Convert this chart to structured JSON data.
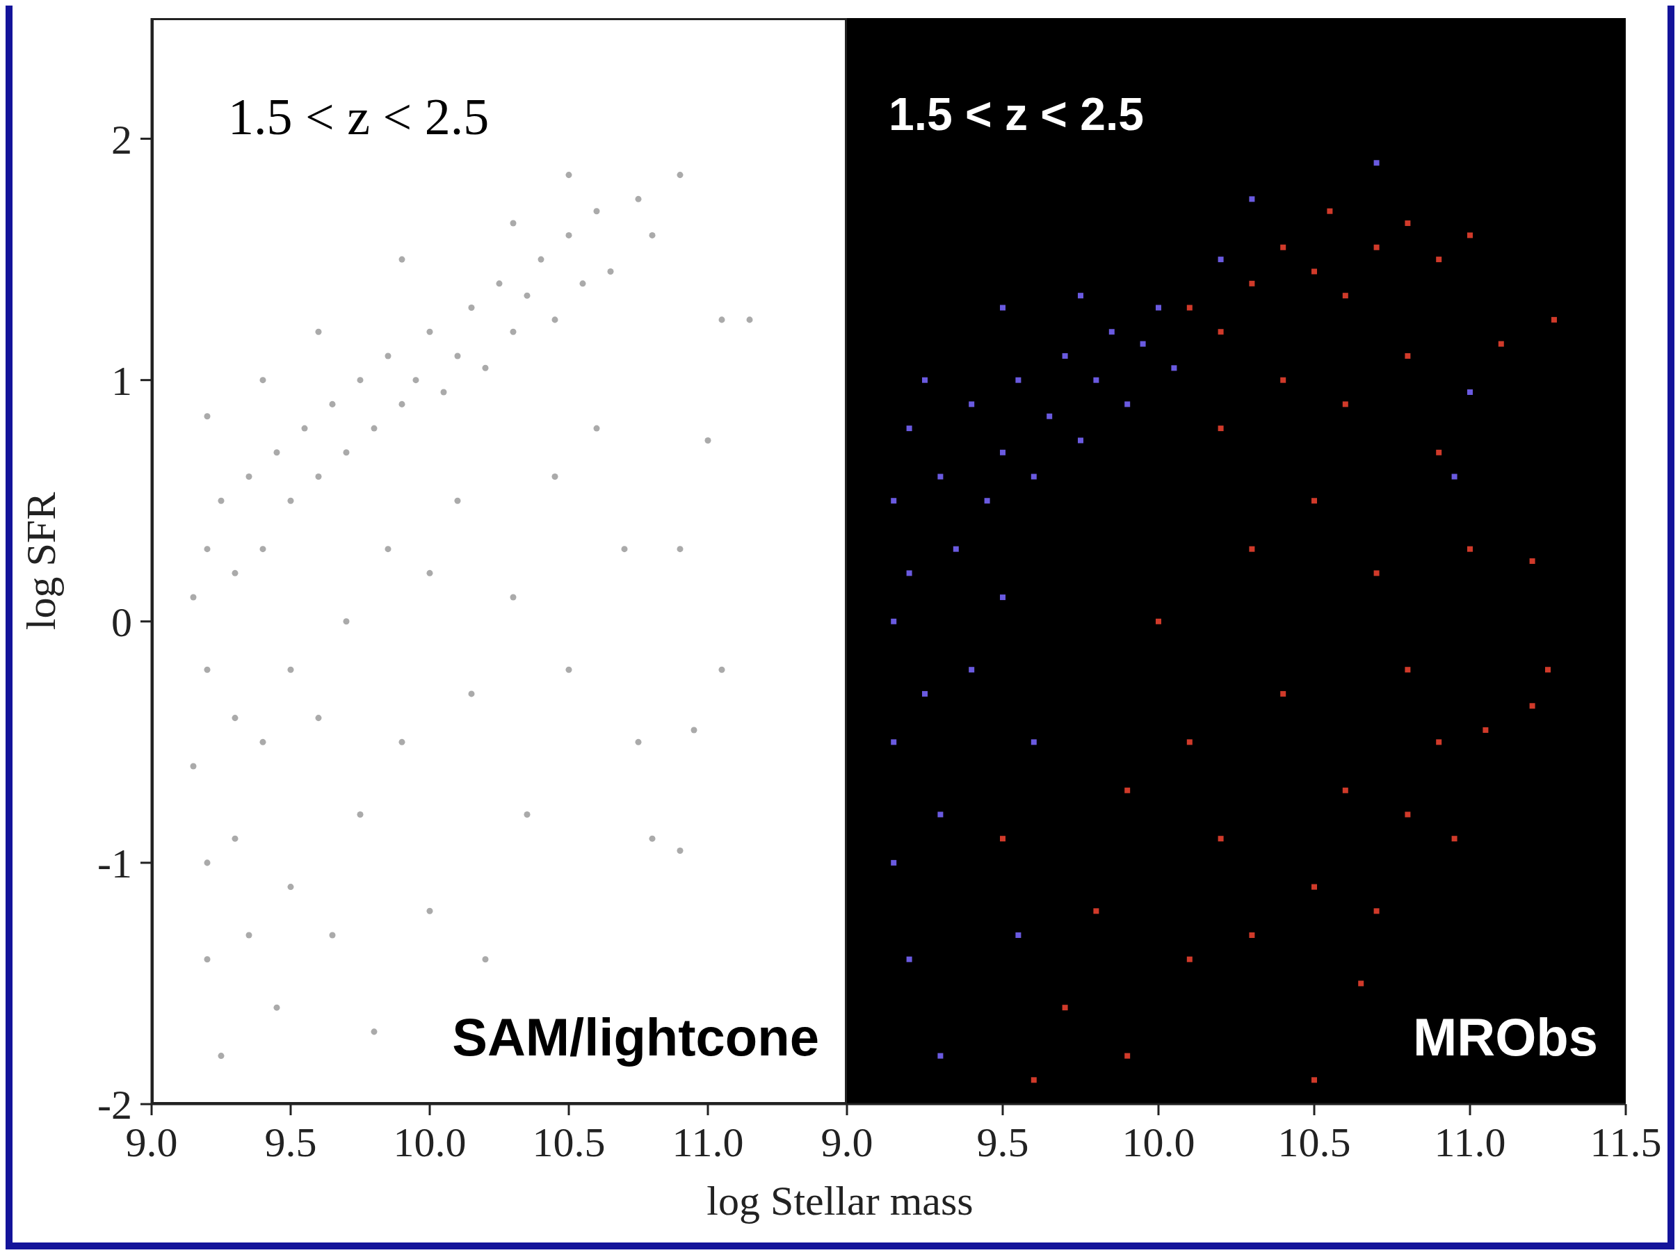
{
  "chart_data": [
    {
      "type": "scatter",
      "ylabel": "log SFR",
      "xlabel": "log Stellar mass",
      "xlim": [
        9,
        11.5
      ],
      "ylim": [
        -2,
        2.5
      ],
      "xticks": [
        {
          "value": 9,
          "label": "9.0"
        },
        {
          "value": 9.5,
          "label": "9.5"
        },
        {
          "value": 10,
          "label": "10.0"
        },
        {
          "value": 10.5,
          "label": "10.5"
        },
        {
          "value": 11,
          "label": "11.0"
        }
      ],
      "yticks": [
        -2,
        -1,
        0,
        1,
        2
      ],
      "grid": false,
      "legend": false,
      "marker": "circle",
      "annotations": [
        "1.5 < z < 2.5",
        "SAM/lightcone"
      ],
      "series": [
        {
          "color": "#aaaaaa",
          "x": [
            9.15,
            9.2,
            9.2,
            9.25,
            9.3,
            9.3,
            9.35,
            9.4,
            9.45,
            9.5,
            9.55,
            9.6,
            9.65,
            9.7,
            9.75,
            9.8,
            9.85,
            9.9,
            9.95,
            10.0,
            10.05,
            10.1,
            10.15,
            10.2,
            10.25,
            10.3,
            10.35,
            10.4,
            10.45,
            10.5,
            10.55,
            10.6,
            10.65,
            10.75,
            10.8,
            10.9,
            11.05,
            9.2,
            9.4,
            9.6,
            9.9,
            10.3,
            10.5,
            9.15,
            9.2,
            9.2,
            9.25,
            9.3,
            9.35,
            9.4,
            9.45,
            9.5,
            9.5,
            9.6,
            9.65,
            9.7,
            9.75,
            9.8,
            9.85,
            9.9,
            10.0,
            10.0,
            10.1,
            10.15,
            10.2,
            10.3,
            10.35,
            10.45,
            10.5,
            10.6,
            10.7,
            10.75,
            10.8,
            10.9,
            10.95,
            11.0,
            11.05,
            11.15,
            10.9
          ],
          "values": [
            0.1,
            0.3,
            -0.2,
            0.5,
            0.2,
            -0.4,
            0.6,
            0.3,
            0.7,
            0.5,
            0.8,
            0.6,
            0.9,
            0.7,
            1.0,
            0.8,
            1.1,
            0.9,
            1.0,
            1.2,
            0.95,
            1.1,
            1.3,
            1.05,
            1.4,
            1.2,
            1.35,
            1.5,
            1.25,
            1.6,
            1.4,
            1.7,
            1.45,
            1.75,
            1.6,
            1.85,
            1.25,
            0.85,
            1.0,
            1.2,
            1.5,
            1.65,
            1.85,
            -0.6,
            -1.0,
            -1.4,
            -1.8,
            -0.9,
            -1.3,
            -0.5,
            -1.6,
            -0.2,
            -1.1,
            -0.4,
            -1.3,
            0.0,
            -0.8,
            -1.7,
            0.3,
            -0.5,
            0.2,
            -1.2,
            0.5,
            -0.3,
            -1.4,
            0.1,
            -0.8,
            0.6,
            -0.2,
            0.8,
            0.3,
            -0.5,
            -0.9,
            0.3,
            -0.45,
            0.75,
            -0.2,
            1.25,
            -0.95
          ]
        }
      ]
    },
    {
      "type": "scatter",
      "xlim": [
        9,
        11.5
      ],
      "ylim": [
        -2,
        2.5
      ],
      "tick_labels": "x",
      "xticks": [
        {
          "value": 9,
          "label": "9.0"
        },
        {
          "value": 9.5,
          "label": "9.5"
        },
        {
          "value": 10,
          "label": "10.0"
        },
        {
          "value": 10.5,
          "label": "10.5"
        },
        {
          "value": 11,
          "label": "11.0"
        },
        {
          "value": 11.5,
          "label": "11.5"
        }
      ],
      "grid": false,
      "legend": false,
      "marker": "square",
      "annotations": [
        "1.5 < z < 2.5",
        "MRObs"
      ],
      "series": [
        {
          "color": "#6a5ae0",
          "x": [
            9.15,
            9.15,
            9.15,
            9.2,
            9.2,
            9.25,
            9.3,
            9.35,
            9.4,
            9.45,
            9.5,
            9.55,
            9.6,
            9.65,
            9.7,
            9.75,
            9.8,
            9.85,
            9.9,
            9.95,
            10.0,
            10.05,
            9.25,
            9.5,
            9.75,
            10.2,
            10.3,
            9.15,
            9.2,
            9.3,
            9.4,
            9.5,
            9.3,
            9.6,
            9.55,
            10.7,
            11.0,
            10.95
          ],
          "values": [
            0.0,
            0.5,
            -0.5,
            0.8,
            0.2,
            -0.3,
            0.6,
            0.3,
            0.9,
            0.5,
            0.7,
            1.0,
            0.6,
            0.85,
            1.1,
            0.75,
            1.0,
            1.2,
            0.9,
            1.15,
            1.3,
            1.05,
            1.0,
            1.3,
            1.35,
            1.5,
            1.75,
            -1.0,
            -1.4,
            -0.8,
            -0.2,
            0.1,
            -1.8,
            -0.5,
            -1.3,
            1.9,
            0.95,
            0.6
          ]
        },
        {
          "color": "#d03a2a",
          "x": [
            10.1,
            10.2,
            10.3,
            10.4,
            10.5,
            10.55,
            10.6,
            10.7,
            10.8,
            10.9,
            11.0,
            10.2,
            10.4,
            10.6,
            10.8,
            10.9,
            11.1,
            10.3,
            10.5,
            10.7,
            10.8,
            10.9,
            11.0,
            11.2,
            11.2,
            11.25,
            11.27,
            10.0,
            10.1,
            10.2,
            10.3,
            10.4,
            10.5,
            10.6,
            10.65,
            10.7,
            10.8,
            10.95,
            11.05,
            9.9,
            9.8,
            9.7,
            9.9,
            10.1,
            10.5,
            9.6,
            9.5
          ],
          "values": [
            1.3,
            1.2,
            1.4,
            1.55,
            1.45,
            1.7,
            1.35,
            1.55,
            1.65,
            1.5,
            1.6,
            0.8,
            1.0,
            0.9,
            1.1,
            0.7,
            1.15,
            0.3,
            0.5,
            0.2,
            -0.2,
            -0.5,
            0.3,
            0.25,
            -0.35,
            -0.2,
            1.25,
            0.0,
            -0.5,
            -0.9,
            -1.3,
            -0.3,
            -1.1,
            -0.7,
            -1.5,
            -1.2,
            -0.8,
            -0.9,
            -0.45,
            -0.7,
            -1.2,
            -1.6,
            -1.8,
            -1.4,
            -1.9,
            -1.9,
            -0.9
          ]
        }
      ]
    }
  ]
}
